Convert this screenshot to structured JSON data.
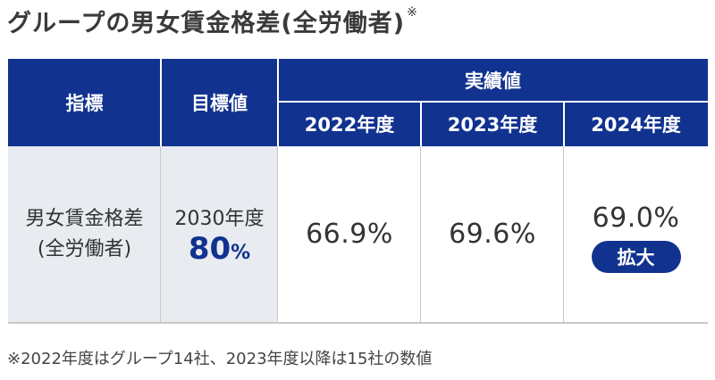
{
  "title": "グループの男女賃金格差(全労働者)",
  "title_mark": "※",
  "table": {
    "header_indicator": "指標",
    "header_target": "目標値",
    "header_results": "実績値",
    "years": [
      "2022年度",
      "2023年度",
      "2024年度"
    ],
    "row_label_line1": "男女賃金格差",
    "row_label_line2": "(全労働者)",
    "target_year": "2030年度",
    "target_value": "80",
    "target_unit": "%",
    "values": [
      "66.9%",
      "69.6%",
      "69.0%"
    ],
    "badge": "拡大"
  },
  "note": "※2022年度はグループ14社、2023年度以降は15社の数値",
  "colors": {
    "navy": "#11328f",
    "gray_bg": "#e8ebf0"
  }
}
